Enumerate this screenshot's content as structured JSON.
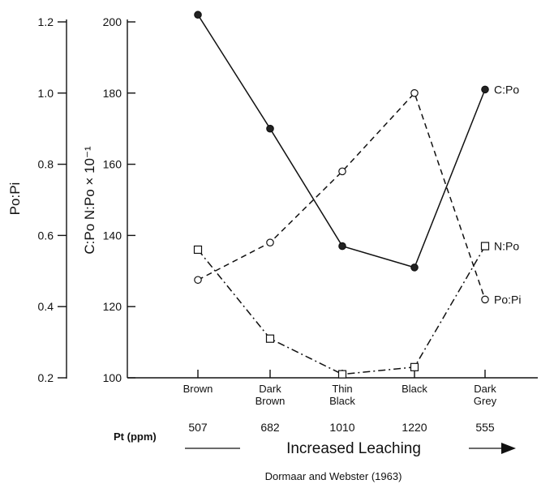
{
  "chart_data": {
    "type": "line",
    "categories": [
      [
        "Brown"
      ],
      [
        "Dark",
        "Brown"
      ],
      [
        "Thin",
        "Black"
      ],
      [
        "Black"
      ],
      [
        "Dark",
        "Grey"
      ]
    ],
    "left_axis": {
      "label": "Po:Pi",
      "ylim": [
        0.2,
        1.2
      ],
      "ticks": [
        "0.2",
        "0.4",
        "0.6",
        "0.8",
        "1.0",
        "1.2"
      ]
    },
    "right_axis": {
      "label": "C:Po  N:Po × 10⁻¹",
      "ylim": [
        100,
        200
      ],
      "ticks": [
        "100",
        "120",
        "140",
        "160",
        "180",
        "200"
      ]
    },
    "series": [
      {
        "name": "C:Po",
        "axis": "right",
        "marker": "filled-circle",
        "line": "solid",
        "values": [
          202,
          170,
          137,
          131,
          181
        ]
      },
      {
        "name": "Po:Pi",
        "axis": "left",
        "marker": "open-circle",
        "line": "dashed",
        "values": [
          0.475,
          0.58,
          0.78,
          1.0,
          0.42
        ]
      },
      {
        "name": "N:Po",
        "axis": "right",
        "marker": "open-square",
        "line": "dash-dot",
        "values": [
          136,
          111,
          101,
          103,
          137
        ]
      }
    ],
    "pt_row": {
      "label": "Pt (ppm)",
      "values": [
        "507",
        "682",
        "1010",
        "1220",
        "555"
      ]
    },
    "arrow_label": "Increased Leaching",
    "source": "Dormaar and Webster (1963)"
  }
}
